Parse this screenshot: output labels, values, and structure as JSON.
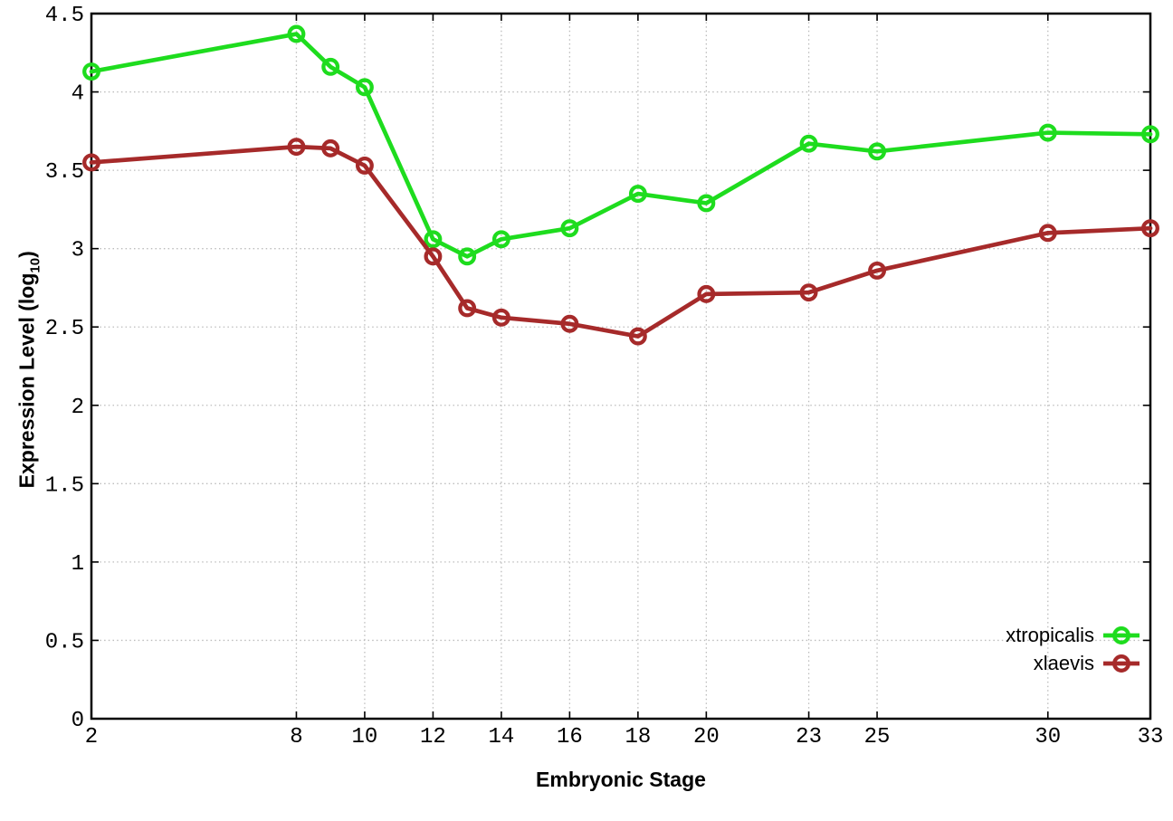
{
  "labels": {
    "x_title": "Embryonic Stage",
    "y_title_main": "Expression Level (log",
    "y_title_sub": "10",
    "y_title_close": ")"
  },
  "legend": {
    "entries": [
      "xtropicalis",
      "xlaevis"
    ]
  },
  "colors": {
    "xtropicalis": "#1edc1e",
    "xlaevis": "#a62a2a",
    "grid": "#bcbcbc",
    "axis": "#000000",
    "background": "#ffffff"
  },
  "chart_data": {
    "type": "line",
    "title": "",
    "xlabel": "Embryonic Stage",
    "ylabel": "Expression Level (log10)",
    "xlim": [
      2,
      33
    ],
    "ylim": [
      0,
      4.5
    ],
    "x_ticks": [
      2,
      8,
      10,
      12,
      14,
      16,
      18,
      20,
      23,
      25,
      30,
      33
    ],
    "y_ticks": [
      0,
      0.5,
      1,
      1.5,
      2,
      2.5,
      3,
      3.5,
      4,
      4.5
    ],
    "grid": true,
    "grid_style": "dotted",
    "marker": "open-circle",
    "legend_position": "bottom-right-inside",
    "x": [
      2,
      8,
      9,
      10,
      12,
      13,
      14,
      16,
      18,
      20,
      23,
      25,
      30,
      33
    ],
    "series": [
      {
        "name": "xtropicalis",
        "color": "#1edc1e",
        "values": [
          4.13,
          4.37,
          4.16,
          4.03,
          3.06,
          2.95,
          3.06,
          3.13,
          3.35,
          3.29,
          3.67,
          3.62,
          3.74,
          3.73
        ]
      },
      {
        "name": "xlaevis",
        "color": "#a62a2a",
        "values": [
          3.55,
          3.65,
          3.64,
          3.53,
          2.95,
          2.62,
          2.56,
          2.52,
          2.44,
          2.71,
          2.72,
          2.86,
          3.1,
          3.13
        ]
      }
    ]
  }
}
